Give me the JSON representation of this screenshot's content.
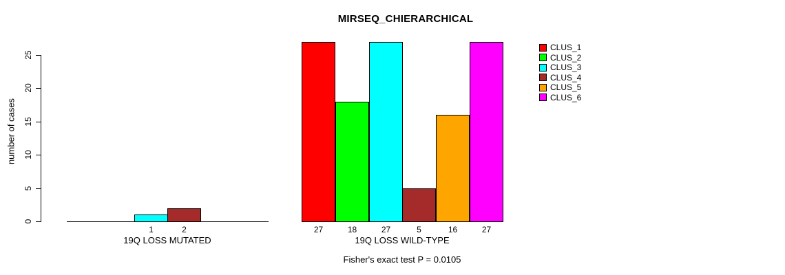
{
  "chart_data": {
    "type": "bar",
    "title": "MIRSEQ_CHIERARCHICAL",
    "ylabel": "number of cases",
    "yticks": [
      0,
      5,
      10,
      15,
      20,
      25
    ],
    "ylim": [
      0,
      27
    ],
    "grid": false,
    "legend_position": "top-right",
    "legend": [
      {
        "label": "CLUS_1",
        "color": "#FF0000"
      },
      {
        "label": "CLUS_2",
        "color": "#00FF00"
      },
      {
        "label": "CLUS_3",
        "color": "#00FFFF"
      },
      {
        "label": "CLUS_4",
        "color": "#A52A2A"
      },
      {
        "label": "CLUS_5",
        "color": "#FFA500"
      },
      {
        "label": "CLUS_6",
        "color": "#FF00FF"
      }
    ],
    "groups": [
      {
        "label": "19Q LOSS MUTATED",
        "values": [
          0,
          0,
          1,
          2,
          0,
          0
        ],
        "bar_labels": [
          "",
          "",
          "1",
          "2",
          "",
          ""
        ]
      },
      {
        "label": "19Q LOSS WILD-TYPE",
        "values": [
          27,
          18,
          27,
          5,
          16,
          27
        ],
        "bar_labels": [
          "27",
          "18",
          "27",
          "5",
          "16",
          "27"
        ]
      }
    ],
    "annotation": "Fisher's exact test P = 0.0105"
  }
}
